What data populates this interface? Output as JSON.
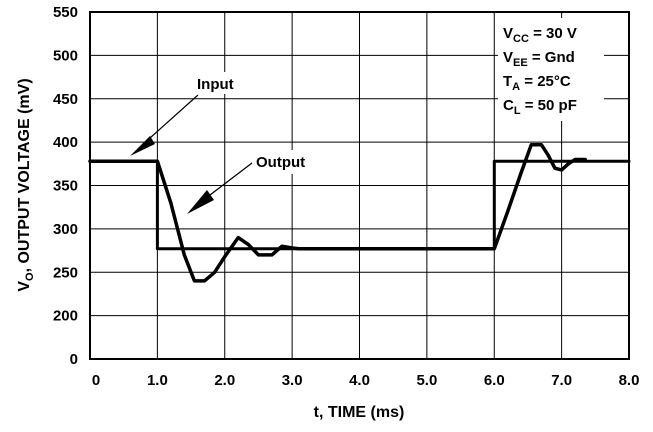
{
  "chart_data": {
    "type": "line",
    "xlabel": "t, TIME  (ms)",
    "ylabel_main": "V",
    "ylabel_sub": "O",
    "ylabel_rest": ", OUTPUT VOLTAGE (mV)",
    "x_ticks": [
      "0",
      "1.0",
      "2.0",
      "3.0",
      "4.0",
      "5.0",
      "6.0",
      "7.0",
      "8.0"
    ],
    "y_ticks": [
      "0",
      "200",
      "250",
      "300",
      "350",
      "400",
      "450",
      "500",
      "550"
    ],
    "xlim": [
      0,
      8
    ],
    "grid": true,
    "series": [
      {
        "name": "Input",
        "points": [
          [
            0,
            378
          ],
          [
            1.0,
            378
          ],
          [
            1.0,
            277
          ],
          [
            6.0,
            277
          ],
          [
            6.0,
            378
          ],
          [
            8.0,
            378
          ]
        ]
      },
      {
        "name": "Output",
        "points": [
          [
            0,
            378
          ],
          [
            1.0,
            378
          ],
          [
            1.2,
            330
          ],
          [
            1.4,
            270
          ],
          [
            1.55,
            240
          ],
          [
            1.7,
            240
          ],
          [
            1.85,
            250
          ],
          [
            2.0,
            268
          ],
          [
            2.2,
            290
          ],
          [
            2.35,
            282
          ],
          [
            2.5,
            270
          ],
          [
            2.7,
            270
          ],
          [
            2.85,
            280
          ],
          [
            3.0,
            278
          ],
          [
            3.1,
            277
          ],
          [
            6.0,
            277
          ],
          [
            6.2,
            320
          ],
          [
            6.4,
            365
          ],
          [
            6.55,
            397
          ],
          [
            6.7,
            397
          ],
          [
            6.8,
            385
          ],
          [
            6.9,
            370
          ],
          [
            7.0,
            368
          ],
          [
            7.1,
            375
          ],
          [
            7.2,
            380
          ],
          [
            7.35,
            380
          ]
        ]
      }
    ],
    "annotations": [
      {
        "label": "Input",
        "text": "Input"
      },
      {
        "label": "Output",
        "text": "Output"
      }
    ],
    "conditions": [
      {
        "main": "V",
        "sub": "CC",
        "rest": " = 30 V"
      },
      {
        "main": "V",
        "sub": "EE",
        "rest": " = Gnd"
      },
      {
        "main": "T",
        "sub": "A",
        "rest": " = 25°C"
      },
      {
        "main": "C",
        "sub": "L",
        "rest": " = 50 pF"
      }
    ]
  }
}
